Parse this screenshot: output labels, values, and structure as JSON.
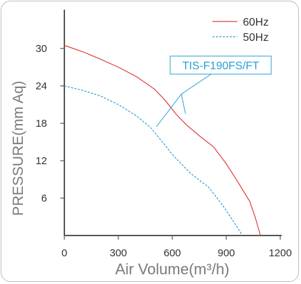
{
  "chart_data": {
    "type": "line",
    "xlabel": "Air Volume(m³/h)",
    "ylabel": "PRESSURE(mm Aq)",
    "xlim": [
      0,
      1200
    ],
    "ylim": [
      0,
      35
    ],
    "x_ticks": [
      "0",
      "300",
      "600",
      "900",
      "1200"
    ],
    "y_ticks": [
      "6",
      "12",
      "18",
      "24",
      "30"
    ],
    "grid": false,
    "legend_position": "top-right",
    "series": [
      {
        "name": "60Hz",
        "color": "#e03c3c",
        "style": "solid",
        "x": [
          0,
          100,
          200,
          300,
          400,
          500,
          560,
          620,
          680,
          750,
          830,
          900,
          960,
          1030,
          1060,
          1090
        ],
        "y": [
          30.5,
          29.5,
          28.3,
          27.0,
          25.5,
          23.5,
          21.7,
          19.5,
          17.7,
          16.0,
          14.2,
          11.5,
          8.8,
          5.5,
          3.0,
          0
        ]
      },
      {
        "name": "50Hz",
        "color": "#2a9fd6",
        "style": "dashed",
        "x": [
          0,
          100,
          200,
          300,
          400,
          480,
          540,
          600,
          700,
          800,
          850,
          900,
          950,
          990
        ],
        "y": [
          24.0,
          23.3,
          22.4,
          21.0,
          19.2,
          17.3,
          15.2,
          13.0,
          10.0,
          7.8,
          6.0,
          4.0,
          1.8,
          0
        ]
      }
    ],
    "annotation": {
      "text": "TIS-F190FS/FT",
      "color": "#2a9fd6"
    }
  }
}
